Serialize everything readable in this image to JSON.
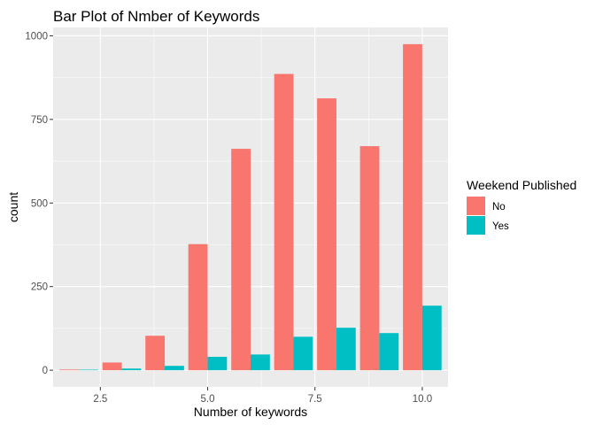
{
  "chart_data": {
    "type": "bar",
    "title": "Bar Plot of Nmber of Keywords",
    "xlabel": "Number of keywords",
    "ylabel": "count",
    "x": [
      2,
      3,
      4,
      5,
      6,
      7,
      8,
      9,
      10
    ],
    "xlim": [
      1.4,
      10.6
    ],
    "ylim": [
      -50,
      1025
    ],
    "xticks": [
      2.5,
      5.0,
      7.5,
      10.0
    ],
    "xtick_labels": [
      "2.5",
      "5.0",
      "7.5",
      "10.0"
    ],
    "yticks": [
      0,
      250,
      500,
      750,
      1000
    ],
    "ytick_labels": [
      "0",
      "250",
      "500",
      "750",
      "1000"
    ],
    "grid": true,
    "legend": {
      "title": "Weekend Published",
      "position": "right"
    },
    "series": [
      {
        "name": "No",
        "color": "#F8766D",
        "values": [
          2,
          23,
          103,
          377,
          662,
          886,
          813,
          670,
          975
        ]
      },
      {
        "name": "Yes",
        "color": "#00BFC4",
        "values": [
          0,
          5,
          13,
          40,
          47,
          100,
          127,
          111,
          193
        ]
      }
    ]
  }
}
